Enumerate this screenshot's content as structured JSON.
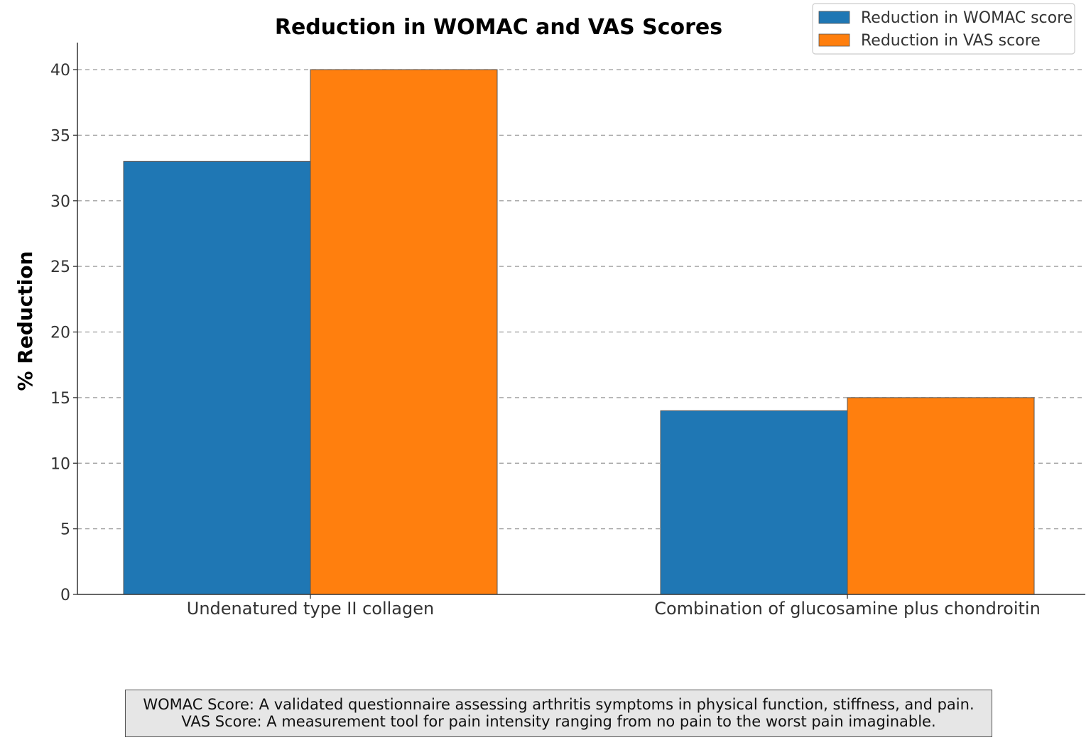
{
  "chart_data": {
    "type": "bar",
    "title": "Reduction in WOMAC and VAS Scores",
    "xlabel": "",
    "ylabel": "% Reduction",
    "ylim": [
      0,
      42
    ],
    "yticks": [
      0,
      5,
      10,
      15,
      20,
      25,
      30,
      35,
      40
    ],
    "categories": [
      "Undenatured type II collagen",
      "Combination of glucosamine plus chondroitin"
    ],
    "series": [
      {
        "name": "Reduction in WOMAC score",
        "values": [
          33,
          14
        ],
        "color": "#1f77b4"
      },
      {
        "name": "Reduction in VAS score",
        "values": [
          40,
          15
        ],
        "color": "#ff7f0e"
      }
    ],
    "grid": "horizontal dashed",
    "legend_position": "top-right"
  },
  "footnote": {
    "line1": "WOMAC Score: A validated questionnaire assessing arthritis symptoms in physical function, stiffness, and pain.",
    "line2": "VAS Score: A measurement tool for pain intensity ranging from no pain to the worst pain imaginable."
  }
}
